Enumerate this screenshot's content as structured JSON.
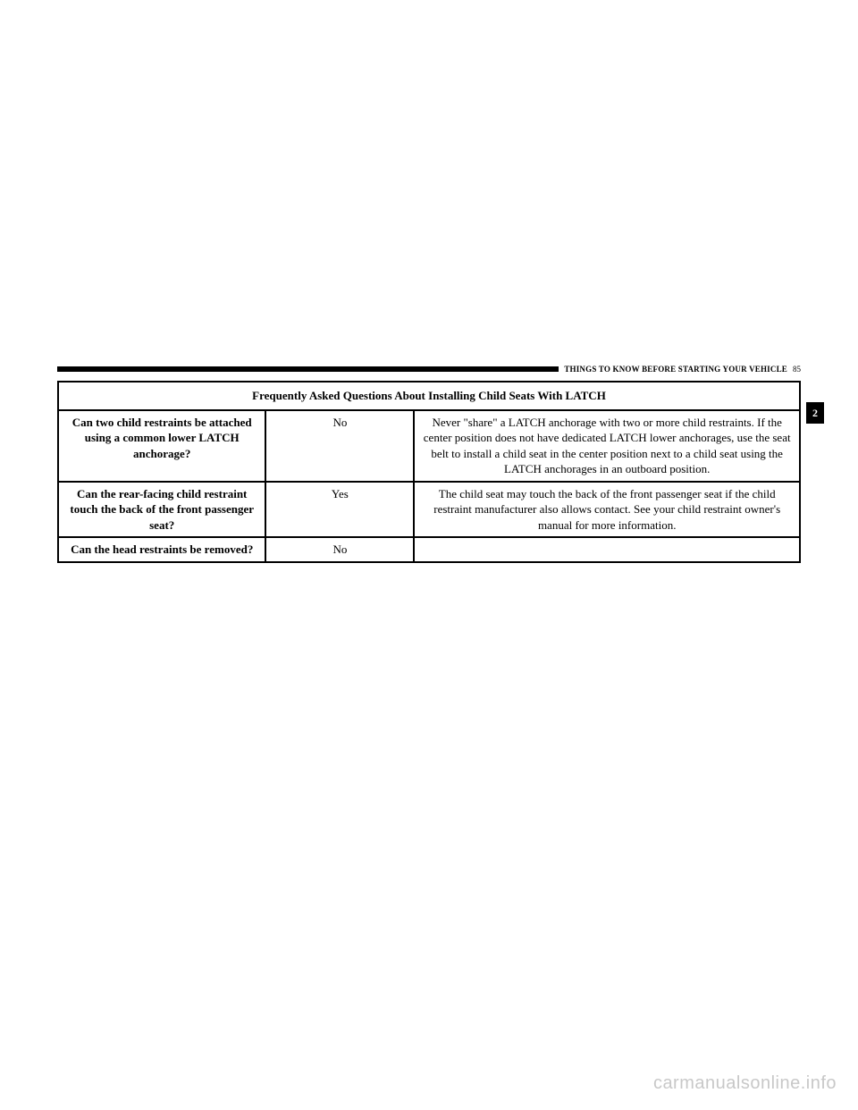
{
  "header": {
    "section_title": "THINGS TO KNOW BEFORE STARTING YOUR VEHICLE",
    "page_number": "85"
  },
  "side_tab": "2",
  "table": {
    "title": "Frequently Asked Questions About Installing Child Seats With LATCH",
    "rows": [
      {
        "question": "Can two child restraints be attached using a common lower LATCH anchorage?",
        "answer": "No",
        "detail": "Never \"share\" a LATCH anchorage with two or more child restraints. If the center position does not have dedicated LATCH lower anchorages, use the seat belt to install a child seat in the center position next to a child seat using the LATCH anchorages in an outboard position."
      },
      {
        "question": "Can the rear-facing child restraint touch the back of the front passenger seat?",
        "answer": "Yes",
        "detail": "The child seat may touch the back of the front passenger seat if the child restraint manufacturer also allows contact. See your child restraint owner's manual for more information."
      },
      {
        "question": "Can the head restraints be removed?",
        "answer": "No",
        "detail": ""
      }
    ]
  },
  "watermark": "carmanualsonline.info"
}
